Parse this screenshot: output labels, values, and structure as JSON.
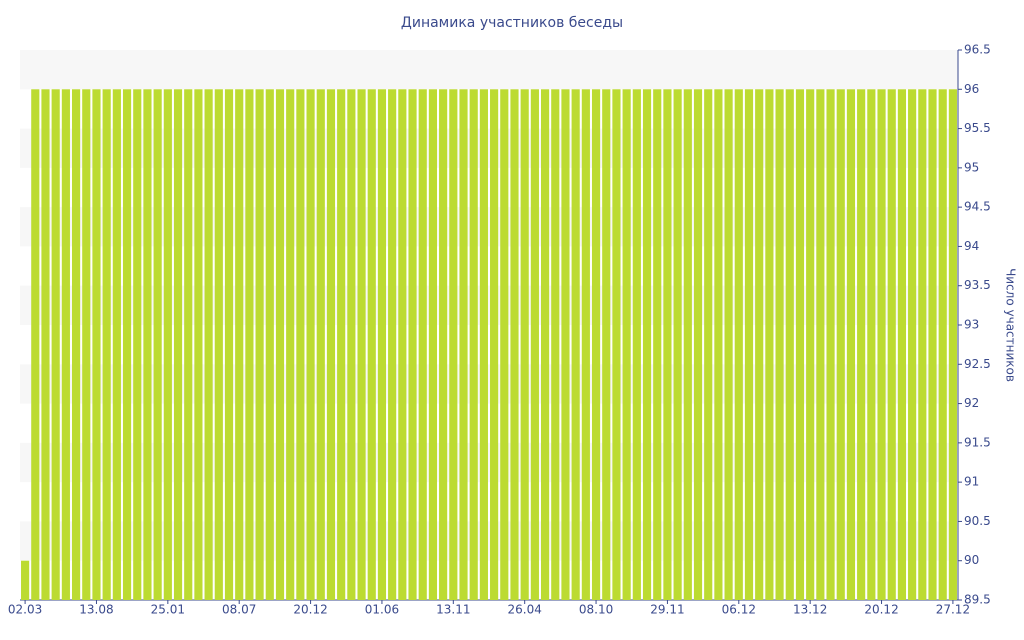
{
  "chart_data": {
    "type": "bar",
    "title": "Динамика участников беседы",
    "y_axis_label": "Число участников",
    "categories": [
      "02.03",
      null,
      null,
      null,
      null,
      null,
      null,
      "13.08",
      null,
      null,
      null,
      null,
      null,
      null,
      "25.01",
      null,
      null,
      null,
      null,
      null,
      null,
      "08.07",
      null,
      null,
      null,
      null,
      null,
      null,
      "20.12",
      null,
      null,
      null,
      null,
      null,
      null,
      "01.06",
      null,
      null,
      null,
      null,
      null,
      null,
      "13.11",
      null,
      null,
      null,
      null,
      null,
      null,
      "26.04",
      null,
      null,
      null,
      null,
      null,
      null,
      "08.10",
      null,
      null,
      null,
      null,
      null,
      null,
      "29.11",
      null,
      null,
      null,
      null,
      null,
      null,
      "06.12",
      null,
      null,
      null,
      null,
      null,
      null,
      "13.12",
      null,
      null,
      null,
      null,
      null,
      null,
      "20.12",
      null,
      null,
      null,
      null,
      null,
      null,
      "27.12"
    ],
    "values": [
      90,
      96,
      96,
      96,
      96,
      96,
      96,
      96,
      96,
      96,
      96,
      96,
      96,
      96,
      96,
      96,
      96,
      96,
      96,
      96,
      96,
      96,
      96,
      96,
      96,
      96,
      96,
      96,
      96,
      96,
      96,
      96,
      96,
      96,
      96,
      96,
      96,
      96,
      96,
      96,
      96,
      96,
      96,
      96,
      96,
      96,
      96,
      96,
      96,
      96,
      96,
      96,
      96,
      96,
      96,
      96,
      96,
      96,
      96,
      96,
      96,
      96,
      96,
      96,
      96,
      96,
      96,
      96,
      96,
      96,
      96,
      96,
      96,
      96,
      96,
      96,
      96,
      96,
      96,
      96,
      96,
      96,
      96,
      96,
      96,
      96,
      96,
      96,
      96,
      96,
      96,
      96
    ],
    "color": "#bcdb32",
    "ylim": [
      89.5,
      96.5
    ],
    "yticks": [
      89.5,
      90,
      90.5,
      91,
      91.5,
      92,
      92.5,
      93,
      93.5,
      94,
      94.5,
      95,
      95.5,
      96,
      96.5
    ],
    "y_axis_side": "right",
    "grid": true
  }
}
